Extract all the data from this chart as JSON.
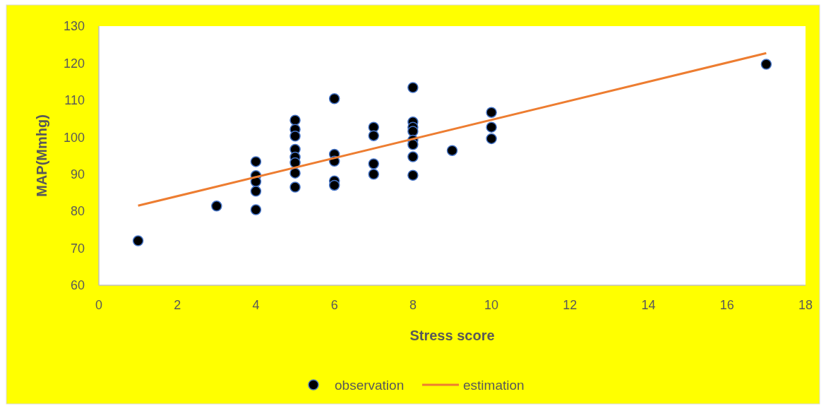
{
  "chart_data": {
    "type": "scatter",
    "xlabel": "Stress score",
    "ylabel": "MAP(Mmhg)",
    "xlim": [
      0,
      18
    ],
    "xticks": [
      0,
      2,
      4,
      6,
      8,
      10,
      12,
      14,
      16,
      18
    ],
    "ylim": [
      60,
      130
    ],
    "yticks": [
      60,
      70,
      80,
      90,
      100,
      110,
      120,
      130
    ],
    "grid": false,
    "legend": "bottom",
    "series": [
      {
        "name": "observation",
        "marker": "circle",
        "color": "#000000",
        "x": [
          1,
          3,
          4,
          4,
          4,
          4,
          4,
          5,
          5,
          5,
          5,
          5,
          5,
          5,
          5,
          6,
          6,
          6,
          6,
          6,
          7,
          7,
          7,
          7,
          8,
          8,
          8,
          8,
          8,
          8,
          8,
          8,
          9,
          10,
          10,
          10,
          17
        ],
        "values": [
          72.0,
          81.4,
          93.4,
          89.6,
          88.0,
          85.4,
          80.4,
          104.6,
          102.1,
          100.3,
          96.7,
          94.6,
          93.1,
          90.3,
          86.5,
          110.4,
          95.4,
          93.5,
          88.2,
          87.0,
          102.7,
          100.4,
          92.8,
          90.0,
          113.4,
          104.1,
          102.7,
          101.6,
          99.2,
          98.0,
          94.7,
          89.7,
          96.4,
          106.7,
          102.7,
          99.6,
          119.7
        ]
      },
      {
        "name": "estimation",
        "type": "line",
        "marker": "none",
        "color": "#ed7d31",
        "x": [
          1,
          17
        ],
        "values": [
          81.5,
          122.7
        ]
      }
    ]
  }
}
